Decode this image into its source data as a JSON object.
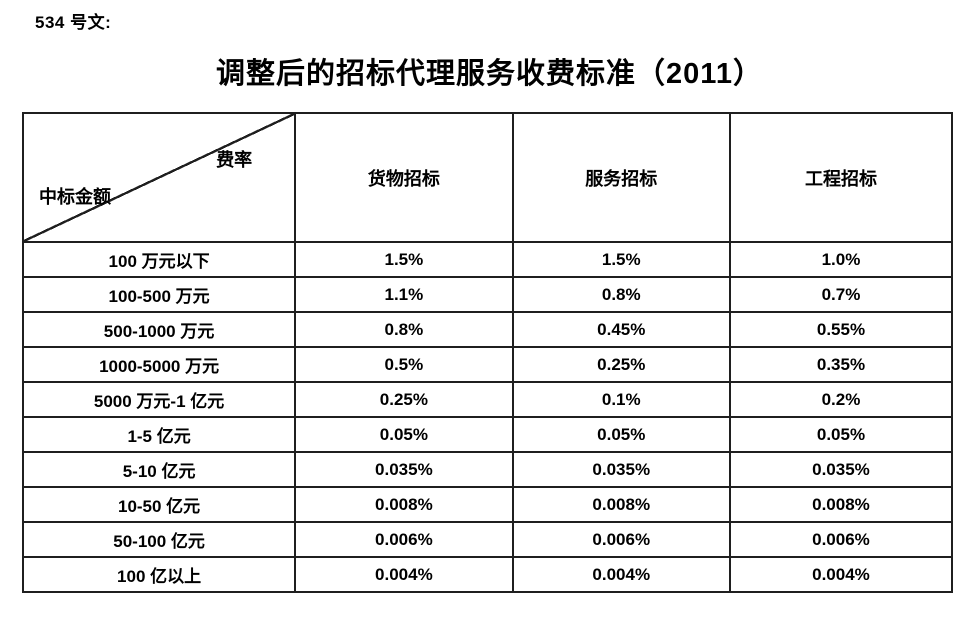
{
  "page": {
    "doc_label": "534 号文:",
    "title": "调整后的招标代理服务收费标准（2011）"
  },
  "colors": {
    "text": "#000000",
    "table_border": "#1f1f1f",
    "background": "#ffffff"
  },
  "table": {
    "corner": {
      "top_right": "费率",
      "bottom_left": "中标金额"
    },
    "columns": [
      "货物招标",
      "服务招标",
      "工程招标"
    ],
    "rows": [
      {
        "range": "100 万元以下",
        "values": [
          "1.5%",
          "1.5%",
          "1.0%"
        ]
      },
      {
        "range": "100-500 万元",
        "values": [
          "1.1%",
          "0.8%",
          "0.7%"
        ]
      },
      {
        "range": "500-1000 万元",
        "values": [
          "0.8%",
          "0.45%",
          "0.55%"
        ]
      },
      {
        "range": "1000-5000 万元",
        "values": [
          "0.5%",
          "0.25%",
          "0.35%"
        ]
      },
      {
        "range": "5000 万元-1 亿元",
        "values": [
          "0.25%",
          "0.1%",
          "0.2%"
        ]
      },
      {
        "range": "1-5 亿元",
        "values": [
          "0.05%",
          "0.05%",
          "0.05%"
        ]
      },
      {
        "range": "5-10 亿元",
        "values": [
          "0.035%",
          "0.035%",
          "0.035%"
        ]
      },
      {
        "range": "10-50 亿元",
        "values": [
          "0.008%",
          "0.008%",
          "0.008%"
        ]
      },
      {
        "range": "50-100 亿元",
        "values": [
          "0.006%",
          "0.006%",
          "0.006%"
        ]
      },
      {
        "range": "100 亿以上",
        "values": [
          "0.004%",
          "0.004%",
          "0.004%"
        ]
      }
    ]
  }
}
